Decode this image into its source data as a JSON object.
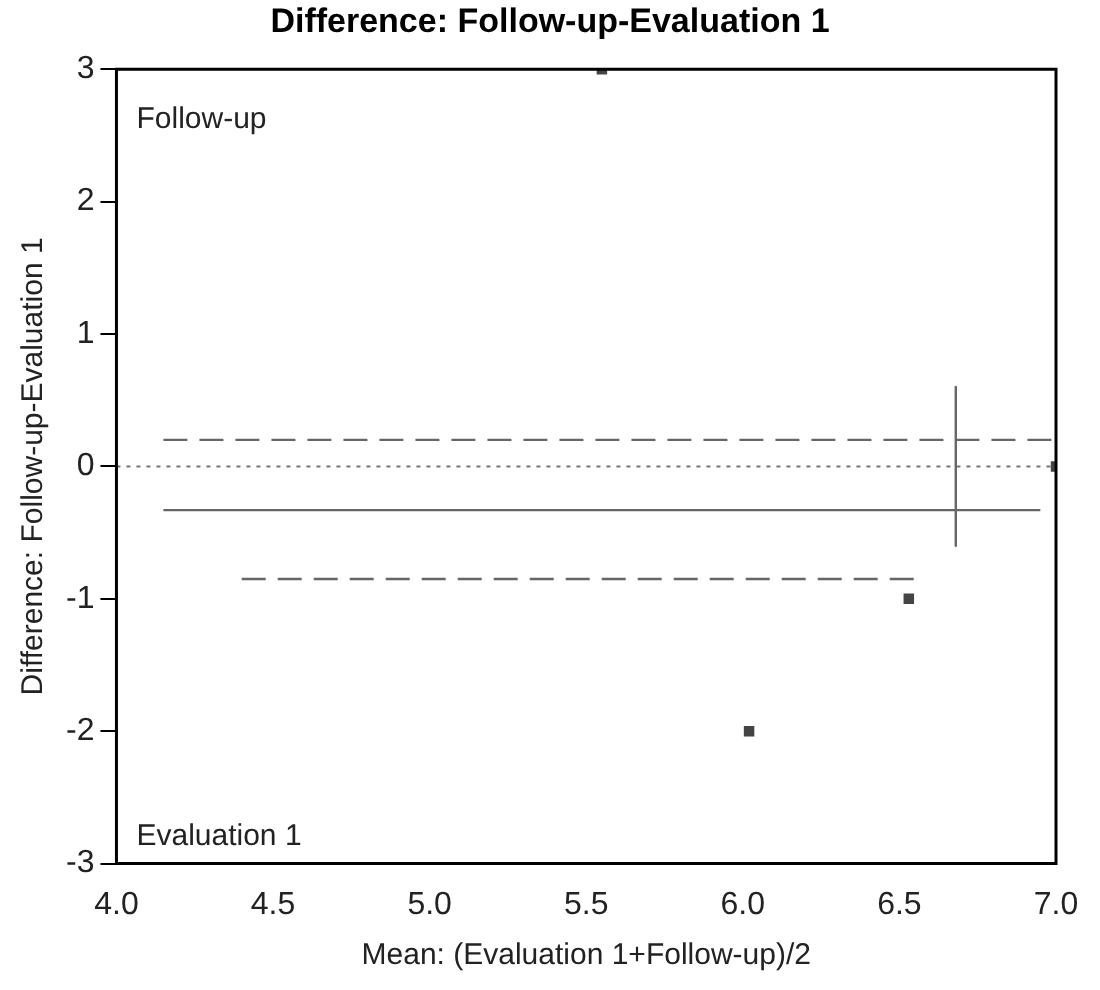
{
  "chart_data": {
    "type": "scatter",
    "title": "Difference: Follow-up-Evaluation 1",
    "xlabel": "Mean: (Evaluation 1+Follow-up)/2",
    "ylabel": "Difference: Follow-up-Evaluation 1",
    "annotations": [
      "Follow-up",
      "Evaluation 1"
    ],
    "xlim": [
      4.0,
      7.0
    ],
    "xticks": [
      {
        "value": 4,
        "label": "4.0"
      },
      {
        "value": 4.5,
        "label": "4.5"
      },
      {
        "value": 5,
        "label": "5.0"
      },
      {
        "value": 5.5,
        "label": "5.5"
      },
      {
        "value": 6,
        "label": "6.0"
      },
      {
        "value": 6.5,
        "label": "6.5"
      },
      {
        "value": 7,
        "label": "7.0"
      }
    ],
    "ylim": [
      -3,
      3
    ],
    "yticks": [
      -3,
      -2,
      -1,
      0,
      1,
      2,
      3
    ],
    "grid": false,
    "legend": false,
    "marker": "square",
    "ref_lines": [
      {
        "axis": "y",
        "value": 0,
        "line_style": "dotted",
        "color": "#777777"
      }
    ],
    "series": [
      {
        "color": "#444444",
        "x": [
          5.55,
          7.0,
          6.53,
          6.02
        ],
        "values": [
          3,
          0,
          -1,
          -2
        ]
      },
      {
        "type": "line",
        "color": "#666666",
        "line_style": "dashed",
        "marker": "none",
        "x": [
          4.15,
          7.0
        ],
        "values": [
          0.2,
          0.2
        ]
      },
      {
        "type": "line",
        "color": "#666666",
        "line_style": "solid",
        "marker": "none",
        "x": [
          4.15,
          6.95
        ],
        "values": [
          -0.33,
          -0.33
        ]
      },
      {
        "type": "line",
        "color": "#666666",
        "line_style": "dashed",
        "marker": "none",
        "x": [
          4.4,
          6.55
        ],
        "values": [
          -0.85,
          -0.85
        ]
      },
      {
        "type": "line",
        "color": "#666666",
        "line_style": "solid",
        "marker": "none",
        "x": [
          6.68,
          6.68
        ],
        "values": [
          0.6,
          -0.6
        ]
      }
    ]
  }
}
